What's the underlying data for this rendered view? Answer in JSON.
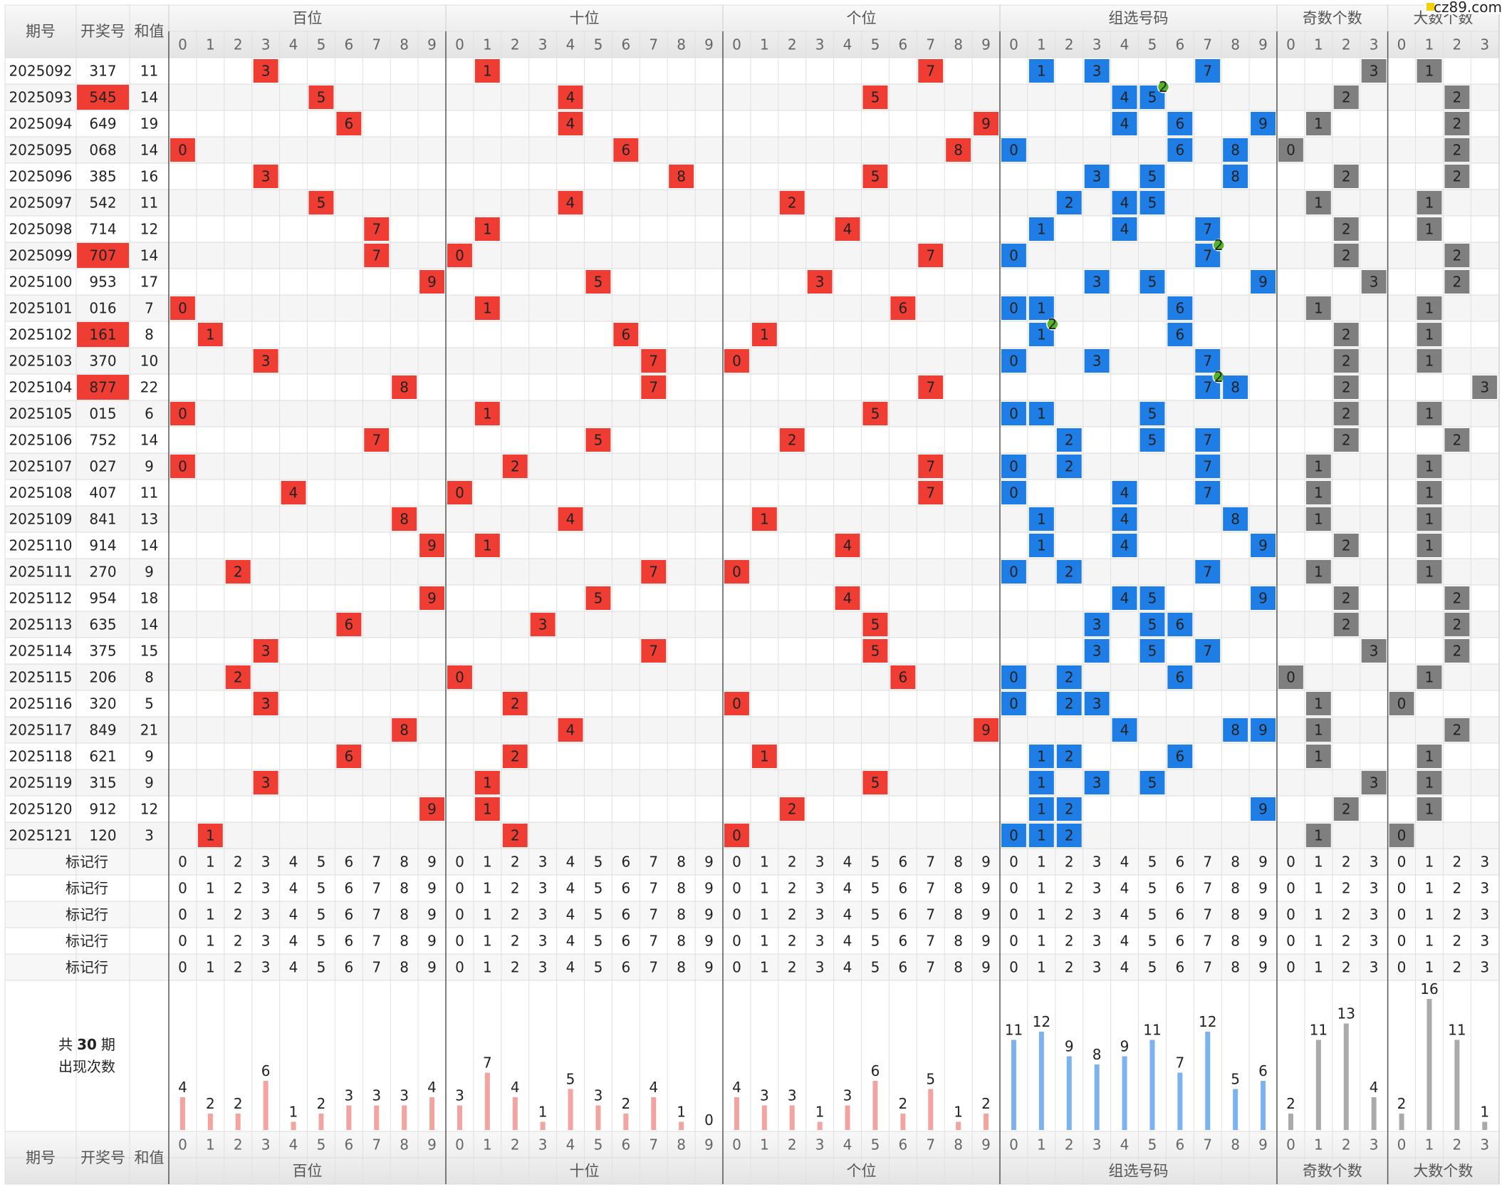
{
  "headers": {
    "issue": "期号",
    "number": "开奖号",
    "sum": "和值"
  },
  "groups": [
    {
      "name": "百位",
      "digits": [
        0,
        1,
        2,
        3,
        4,
        5,
        6,
        7,
        8,
        9
      ],
      "counts": [
        4,
        2,
        2,
        6,
        1,
        2,
        3,
        3,
        3,
        4
      ]
    },
    {
      "name": "十位",
      "digits": [
        0,
        1,
        2,
        3,
        4,
        5,
        6,
        7,
        8,
        9
      ],
      "counts": [
        3,
        7,
        4,
        1,
        5,
        3,
        2,
        4,
        1,
        0
      ]
    },
    {
      "name": "个位",
      "digits": [
        0,
        1,
        2,
        3,
        4,
        5,
        6,
        7,
        8,
        9
      ],
      "counts": [
        4,
        3,
        3,
        1,
        3,
        6,
        2,
        5,
        1,
        2
      ]
    },
    {
      "name": "组选号码",
      "digits": [
        0,
        1,
        2,
        3,
        4,
        5,
        6,
        7,
        8,
        9
      ],
      "counts": [
        11,
        12,
        9,
        8,
        9,
        11,
        7,
        12,
        5,
        6
      ]
    },
    {
      "name": "奇数个数",
      "digits": [
        0,
        1,
        2,
        3
      ],
      "counts": [
        2,
        11,
        13,
        4
      ]
    },
    {
      "name": "大数个数",
      "digits": [
        0,
        1,
        2,
        3
      ],
      "counts": [
        2,
        16,
        11,
        1
      ]
    }
  ],
  "rows": [
    {
      "issue": "2025092",
      "number": "317",
      "sum": 11
    },
    {
      "issue": "2025093",
      "number": "545",
      "sum": 14,
      "repeat": 2
    },
    {
      "issue": "2025094",
      "number": "649",
      "sum": 19
    },
    {
      "issue": "2025095",
      "number": "068",
      "sum": 14
    },
    {
      "issue": "2025096",
      "number": "385",
      "sum": 16
    },
    {
      "issue": "2025097",
      "number": "542",
      "sum": 11
    },
    {
      "issue": "2025098",
      "number": "714",
      "sum": 12
    },
    {
      "issue": "2025099",
      "number": "707",
      "sum": 14,
      "repeat": 2
    },
    {
      "issue": "2025100",
      "number": "953",
      "sum": 17
    },
    {
      "issue": "2025101",
      "number": "016",
      "sum": 7
    },
    {
      "issue": "2025102",
      "number": "161",
      "sum": 8,
      "repeat": 2
    },
    {
      "issue": "2025103",
      "number": "370",
      "sum": 10
    },
    {
      "issue": "2025104",
      "number": "877",
      "sum": 22,
      "repeat": 2
    },
    {
      "issue": "2025105",
      "number": "015",
      "sum": 6
    },
    {
      "issue": "2025106",
      "number": "752",
      "sum": 14
    },
    {
      "issue": "2025107",
      "number": "027",
      "sum": 9
    },
    {
      "issue": "2025108",
      "number": "407",
      "sum": 11
    },
    {
      "issue": "2025109",
      "number": "841",
      "sum": 13
    },
    {
      "issue": "2025110",
      "number": "914",
      "sum": 14
    },
    {
      "issue": "2025111",
      "number": "270",
      "sum": 9
    },
    {
      "issue": "2025112",
      "number": "954",
      "sum": 18
    },
    {
      "issue": "2025113",
      "number": "635",
      "sum": 14
    },
    {
      "issue": "2025114",
      "number": "375",
      "sum": 15
    },
    {
      "issue": "2025115",
      "number": "206",
      "sum": 8
    },
    {
      "issue": "2025116",
      "number": "320",
      "sum": 5
    },
    {
      "issue": "2025117",
      "number": "849",
      "sum": 21
    },
    {
      "issue": "2025118",
      "number": "621",
      "sum": 9
    },
    {
      "issue": "2025119",
      "number": "315",
      "sum": 9
    },
    {
      "issue": "2025120",
      "number": "912",
      "sum": 12
    },
    {
      "issue": "2025121",
      "number": "120",
      "sum": 3
    }
  ],
  "marker_rows": [
    "标记行",
    "标记行",
    "标记行",
    "标记行",
    "标记行"
  ],
  "summary": {
    "prefix": "共",
    "periods": 30,
    "suffix": "期",
    "caption": "出现次数"
  },
  "watermark": "cz89.com"
}
